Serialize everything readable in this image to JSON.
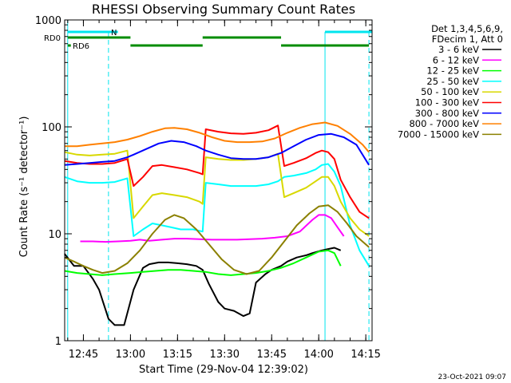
{
  "chart_data": {
    "type": "line",
    "title": "RHESSI Observing Summary Count Rates",
    "xlabel": "Start Time (29-Nov-04 12:39:02)",
    "ylabel": "Count Rate (s⁻¹ detector⁻¹)",
    "x_ticks": [
      "12:45",
      "13:00",
      "13:15",
      "13:30",
      "13:45",
      "14:00",
      "14:15"
    ],
    "y_ticks": [
      "1",
      "10",
      "100",
      "1000"
    ],
    "x_range": [
      "12:39:02",
      "14:17:00"
    ],
    "y_range": [
      1,
      1000
    ],
    "y_scale": "log",
    "legend_position": "right",
    "legend_header": [
      "Det 1,3,4,5,6,9,",
      "FDecim 1, Att 0"
    ],
    "markers": [
      "RD0",
      "RD6",
      "N"
    ],
    "timestamp": "23-Oct-2021 09:07",
    "series": [
      {
        "name": "3 - 6 keV",
        "color": "#000000",
        "points": [
          [
            "12:39",
            6.5
          ],
          [
            "12:42",
            5.0
          ],
          [
            "12:45",
            5.0
          ],
          [
            "12:48",
            3.8
          ],
          [
            "12:50",
            3.0
          ],
          [
            "12:53",
            1.6
          ],
          [
            "12:55",
            1.4
          ],
          [
            "12:58",
            1.4
          ],
          [
            "13:01",
            3.0
          ],
          [
            "13:04",
            4.8
          ],
          [
            "13:06",
            5.2
          ],
          [
            "13:09",
            5.4
          ],
          [
            "13:12",
            5.4
          ],
          [
            "13:15",
            5.3
          ],
          [
            "13:18",
            5.2
          ],
          [
            "13:21",
            5.0
          ],
          [
            "13:23",
            4.6
          ],
          [
            "13:25",
            3.4
          ],
          [
            "13:28",
            2.3
          ],
          [
            "13:30",
            2.0
          ],
          [
            "13:33",
            1.9
          ],
          [
            "13:36",
            1.7
          ],
          [
            "13:38",
            1.8
          ],
          [
            "13:40",
            3.5
          ],
          [
            "13:43",
            4.2
          ],
          [
            "13:45",
            4.6
          ],
          [
            "13:48",
            5.0
          ],
          [
            "13:50",
            5.5
          ],
          [
            "13:53",
            6.0
          ],
          [
            "13:56",
            6.3
          ],
          [
            "13:58",
            6.6
          ],
          [
            "14:01",
            7.0
          ],
          [
            "14:03",
            7.2
          ],
          [
            "14:05",
            7.4
          ],
          [
            "14:07",
            7.0
          ]
        ]
      },
      {
        "name": "6 - 12 keV",
        "color": "#ff00ff",
        "points": [
          [
            "12:44",
            8.5
          ],
          [
            "12:48",
            8.5
          ],
          [
            "12:52",
            8.4
          ],
          [
            "12:56",
            8.5
          ],
          [
            "13:00",
            8.6
          ],
          [
            "13:03",
            8.8
          ],
          [
            "13:06",
            8.6
          ],
          [
            "13:10",
            8.8
          ],
          [
            "13:14",
            9.0
          ],
          [
            "13:18",
            9.0
          ],
          [
            "13:22",
            8.9
          ],
          [
            "13:26",
            8.8
          ],
          [
            "13:30",
            8.8
          ],
          [
            "13:34",
            8.8
          ],
          [
            "13:38",
            8.9
          ],
          [
            "13:42",
            9.0
          ],
          [
            "13:46",
            9.2
          ],
          [
            "13:50",
            9.5
          ],
          [
            "13:54",
            10.5
          ],
          [
            "13:58",
            13.5
          ],
          [
            "14:00",
            15.0
          ],
          [
            "14:02",
            15.0
          ],
          [
            "14:04",
            14.0
          ],
          [
            "14:06",
            11.5
          ],
          [
            "14:08",
            9.5
          ]
        ]
      },
      {
        "name": "12 - 25 keV",
        "color": "#00ff00",
        "points": [
          [
            "12:39",
            4.5
          ],
          [
            "12:43",
            4.3
          ],
          [
            "12:47",
            4.2
          ],
          [
            "12:51",
            4.1
          ],
          [
            "12:55",
            4.2
          ],
          [
            "13:00",
            4.3
          ],
          [
            "13:04",
            4.4
          ],
          [
            "13:08",
            4.5
          ],
          [
            "13:12",
            4.6
          ],
          [
            "13:16",
            4.6
          ],
          [
            "13:20",
            4.5
          ],
          [
            "13:24",
            4.4
          ],
          [
            "13:28",
            4.2
          ],
          [
            "13:32",
            4.1
          ],
          [
            "13:36",
            4.2
          ],
          [
            "13:40",
            4.3
          ],
          [
            "13:44",
            4.5
          ],
          [
            "13:48",
            4.8
          ],
          [
            "13:52",
            5.3
          ],
          [
            "13:56",
            6.0
          ],
          [
            "14:00",
            6.8
          ],
          [
            "14:03",
            7.0
          ],
          [
            "14:05",
            6.6
          ],
          [
            "14:07",
            5.0
          ]
        ]
      },
      {
        "name": "25 - 50 keV",
        "color": "#00ffff",
        "points": [
          [
            "12:39",
            34
          ],
          [
            "12:43",
            31
          ],
          [
            "12:47",
            30
          ],
          [
            "12:51",
            30
          ],
          [
            "12:55",
            30.5
          ],
          [
            "12:59",
            33
          ],
          [
            "13:01",
            9.5
          ],
          [
            "13:04",
            11.0
          ],
          [
            "13:07",
            12.5
          ],
          [
            "13:10",
            12.0
          ],
          [
            "13:13",
            11.5
          ],
          [
            "13:16",
            11.0
          ],
          [
            "13:20",
            11.0
          ],
          [
            "13:23",
            10.5
          ],
          [
            "13:24",
            30
          ],
          [
            "13:28",
            29
          ],
          [
            "13:32",
            28
          ],
          [
            "13:36",
            28
          ],
          [
            "13:40",
            28
          ],
          [
            "13:44",
            29
          ],
          [
            "13:47",
            31
          ],
          [
            "13:49",
            34
          ],
          [
            "13:52",
            35
          ],
          [
            "13:56",
            37
          ],
          [
            "13:59",
            40
          ],
          [
            "14:01",
            44
          ],
          [
            "14:03",
            45
          ],
          [
            "14:05",
            38
          ],
          [
            "14:07",
            28
          ],
          [
            "14:10",
            12
          ],
          [
            "14:13",
            7
          ],
          [
            "14:16",
            5.0
          ]
        ]
      },
      {
        "name": "50 - 100 keV",
        "color": "#d8d800",
        "points": [
          [
            "12:39",
            58
          ],
          [
            "12:43",
            55
          ],
          [
            "12:47",
            54
          ],
          [
            "12:51",
            55
          ],
          [
            "12:55",
            56
          ],
          [
            "12:59",
            60
          ],
          [
            "13:01",
            14.0
          ],
          [
            "13:04",
            18.0
          ],
          [
            "13:07",
            23
          ],
          [
            "13:10",
            24
          ],
          [
            "13:14",
            23
          ],
          [
            "13:18",
            22
          ],
          [
            "13:22",
            20
          ],
          [
            "13:23",
            19
          ],
          [
            "13:24",
            52
          ],
          [
            "13:28",
            50
          ],
          [
            "13:32",
            49
          ],
          [
            "13:36",
            49
          ],
          [
            "13:40",
            50
          ],
          [
            "13:44",
            52
          ],
          [
            "13:47",
            56
          ],
          [
            "13:49",
            22
          ],
          [
            "13:52",
            24
          ],
          [
            "13:56",
            27
          ],
          [
            "13:59",
            31
          ],
          [
            "14:01",
            34
          ],
          [
            "14:03",
            34
          ],
          [
            "14:05",
            28
          ],
          [
            "14:07",
            20
          ],
          [
            "14:10",
            14
          ],
          [
            "14:13",
            11
          ],
          [
            "14:16",
            9.5
          ]
        ]
      },
      {
        "name": "100 - 300 keV",
        "color": "#ff0000",
        "points": [
          [
            "12:39",
            48
          ],
          [
            "12:43",
            46
          ],
          [
            "12:47",
            45
          ],
          [
            "12:51",
            45
          ],
          [
            "12:55",
            46
          ],
          [
            "12:59",
            50
          ],
          [
            "13:01",
            28
          ],
          [
            "13:04",
            34
          ],
          [
            "13:07",
            43
          ],
          [
            "13:10",
            44
          ],
          [
            "13:14",
            42
          ],
          [
            "13:18",
            40
          ],
          [
            "13:22",
            37
          ],
          [
            "13:23",
            36
          ],
          [
            "13:24",
            95
          ],
          [
            "13:28",
            90
          ],
          [
            "13:32",
            87
          ],
          [
            "13:36",
            86
          ],
          [
            "13:40",
            88
          ],
          [
            "13:44",
            93
          ],
          [
            "13:47",
            103
          ],
          [
            "13:49",
            43
          ],
          [
            "13:52",
            46
          ],
          [
            "13:56",
            51
          ],
          [
            "13:59",
            57
          ],
          [
            "14:01",
            60
          ],
          [
            "14:03",
            58
          ],
          [
            "14:05",
            50
          ],
          [
            "14:07",
            32
          ],
          [
            "14:10",
            22
          ],
          [
            "14:13",
            16
          ],
          [
            "14:16",
            14
          ]
        ]
      },
      {
        "name": "300 - 800 keV",
        "color": "#0000ff",
        "points": [
          [
            "12:39",
            44
          ],
          [
            "12:43",
            45
          ],
          [
            "12:47",
            46
          ],
          [
            "12:51",
            47
          ],
          [
            "12:55",
            48
          ],
          [
            "12:59",
            52
          ],
          [
            "13:01",
            55
          ],
          [
            "13:05",
            62
          ],
          [
            "13:09",
            70
          ],
          [
            "13:13",
            74
          ],
          [
            "13:17",
            72
          ],
          [
            "13:21",
            66
          ],
          [
            "13:24",
            60
          ],
          [
            "13:28",
            55
          ],
          [
            "13:32",
            51
          ],
          [
            "13:36",
            50
          ],
          [
            "13:40",
            50
          ],
          [
            "13:44",
            52
          ],
          [
            "13:48",
            57
          ],
          [
            "13:52",
            66
          ],
          [
            "13:56",
            76
          ],
          [
            "14:00",
            84
          ],
          [
            "14:04",
            86
          ],
          [
            "14:08",
            80
          ],
          [
            "14:12",
            68
          ],
          [
            "14:16",
            44
          ]
        ]
      },
      {
        "name": "800 - 7000 keV",
        "color": "#ff8000",
        "points": [
          [
            "12:39",
            66
          ],
          [
            "12:43",
            66
          ],
          [
            "12:47",
            68
          ],
          [
            "12:51",
            70
          ],
          [
            "12:55",
            72
          ],
          [
            "12:59",
            76
          ],
          [
            "13:03",
            82
          ],
          [
            "13:07",
            90
          ],
          [
            "13:11",
            97
          ],
          [
            "13:14",
            98
          ],
          [
            "13:18",
            95
          ],
          [
            "13:22",
            88
          ],
          [
            "13:26",
            80
          ],
          [
            "13:30",
            74
          ],
          [
            "13:34",
            72
          ],
          [
            "13:38",
            72
          ],
          [
            "13:42",
            73
          ],
          [
            "13:46",
            78
          ],
          [
            "13:50",
            88
          ],
          [
            "13:54",
            98
          ],
          [
            "13:58",
            106
          ],
          [
            "14:02",
            110
          ],
          [
            "14:06",
            102
          ],
          [
            "14:10",
            86
          ],
          [
            "14:14",
            68
          ],
          [
            "14:16",
            58
          ]
        ]
      },
      {
        "name": "7000 - 15000 keV",
        "color": "#8b8000",
        "points": [
          [
            "12:39",
            6.0
          ],
          [
            "12:42",
            5.5
          ],
          [
            "12:45",
            5.0
          ],
          [
            "12:48",
            4.6
          ],
          [
            "12:51",
            4.3
          ],
          [
            "12:55",
            4.5
          ],
          [
            "12:59",
            5.3
          ],
          [
            "13:03",
            7.0
          ],
          [
            "13:07",
            10.0
          ],
          [
            "13:11",
            13.5
          ],
          [
            "13:14",
            15.0
          ],
          [
            "13:17",
            14.0
          ],
          [
            "13:21",
            11.0
          ],
          [
            "13:25",
            8.0
          ],
          [
            "13:29",
            5.8
          ],
          [
            "13:33",
            4.6
          ],
          [
            "13:37",
            4.2
          ],
          [
            "13:41",
            4.5
          ],
          [
            "13:45",
            6.0
          ],
          [
            "13:49",
            8.5
          ],
          [
            "13:53",
            12.0
          ],
          [
            "13:57",
            15.5
          ],
          [
            "14:00",
            18.0
          ],
          [
            "14:03",
            18.5
          ],
          [
            "14:06",
            16.0
          ],
          [
            "14:09",
            12.5
          ],
          [
            "14:12",
            9.5
          ],
          [
            "14:16",
            7.5
          ]
        ]
      }
    ]
  }
}
